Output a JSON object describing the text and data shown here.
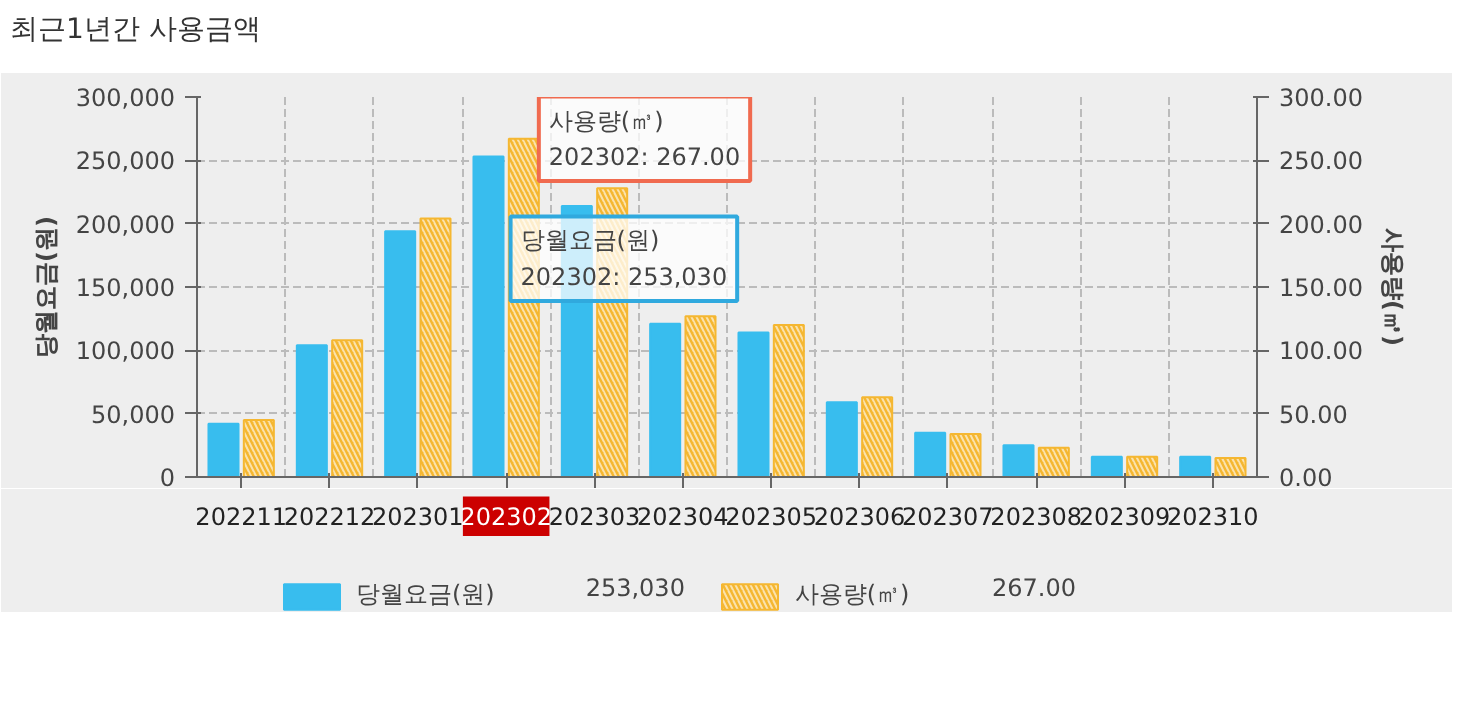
{
  "chart_data": {
    "type": "bar",
    "title": "최근1년간 사용금액",
    "ylabel": "당월요금(원)",
    "y2label": "사용량(㎥)",
    "categories": [
      "202211",
      "202212",
      "202301",
      "202302",
      "202303",
      "202304",
      "202305",
      "202306",
      "202307",
      "202308",
      "202309",
      "202310"
    ],
    "series": [
      {
        "name": "당월요금(원)",
        "color": "#38bdee",
        "values": [
          42000,
          104000,
          194000,
          253030,
          214000,
          121000,
          114000,
          59000,
          35000,
          25000,
          16000,
          16000
        ]
      },
      {
        "name": "사용량(㎥)",
        "color": "#f5b731",
        "axis": "y2",
        "values": [
          45,
          108,
          204,
          267,
          228,
          127,
          120,
          63,
          34,
          23,
          16,
          15
        ]
      }
    ],
    "ylim": [
      0,
      300000
    ],
    "yticks": [
      {
        "value": 0,
        "label": "0"
      },
      {
        "value": 50000,
        "label": "50,000"
      },
      {
        "value": 100000,
        "label": "100,000"
      },
      {
        "value": 150000,
        "label": "150,000"
      },
      {
        "value": 200000,
        "label": "200,000"
      },
      {
        "value": 250000,
        "label": "250,000"
      },
      {
        "value": 300000,
        "label": "300,000"
      }
    ],
    "y2lim": [
      0,
      300
    ],
    "y2ticks": [
      {
        "value": 0,
        "label": "0.00"
      },
      {
        "value": 50,
        "label": "50.00"
      },
      {
        "value": 100,
        "label": "100.00"
      },
      {
        "value": 150,
        "label": "150.00"
      },
      {
        "value": 200,
        "label": "200.00"
      },
      {
        "value": 250,
        "label": "250.00"
      },
      {
        "value": 300,
        "label": "300.00"
      }
    ],
    "annotations": [
      {
        "text": "사용량(㎥)\n202302: 267.00",
        "x": "202302"
      },
      {
        "text": "당월요금(원)\n202302: 253,030",
        "x": "202302",
        "y": 253030
      },
      "253,030",
      "267.00"
    ],
    "grid": true,
    "legend": "bottom"
  }
}
